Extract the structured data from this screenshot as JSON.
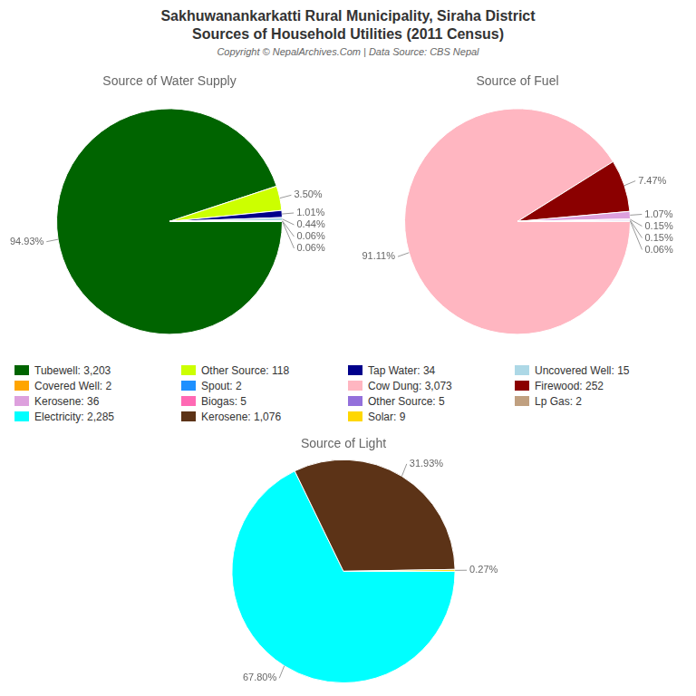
{
  "title": "Sakhuwanankarkatti Rural Municipality, Siraha District",
  "subtitle": "Sources of Household Utilities (2011 Census)",
  "annotations": [
    "Copyright © NepalArchives.Com | Data Source: CBS Nepal"
  ],
  "chart_data": [
    {
      "type": "pie",
      "title": "Source of Water Supply",
      "categories": [
        "Tubewell: 3,203",
        "Other Source: 118",
        "Tap Water: 34",
        "Uncovered Well: 15",
        "Covered Well: 2",
        "Spout: 2"
      ],
      "values": [
        94.93,
        3.5,
        1.01,
        0.44,
        0.06,
        0.06
      ],
      "value_labels": [
        "94.93%",
        "3.50%",
        "1.01%",
        "0.44%",
        "0.06%",
        "0.06%"
      ],
      "colors": [
        "#006400",
        "#ccff00",
        "#00008b",
        "#add8e6",
        "#ffa500",
        "#1e90ff"
      ],
      "data_labels": true
    },
    {
      "type": "pie",
      "title": "Source of Fuel",
      "categories": [
        "Cow Dung: 3,073",
        "Firewood: 252",
        "Kerosene: 36",
        "Biogas: 5",
        "Other Source: 5",
        "Lp Gas: 2"
      ],
      "values": [
        91.11,
        7.47,
        1.07,
        0.15,
        0.15,
        0.06
      ],
      "value_labels": [
        "91.11%",
        "7.47%",
        "1.07%",
        "0.15%",
        "0.15%",
        "0.06%"
      ],
      "colors": [
        "#ffb6c1",
        "#8b0000",
        "#dda0dd",
        "#ff69b4",
        "#9370db",
        "#c0a080"
      ],
      "data_labels": true
    },
    {
      "type": "pie",
      "title": "Source of Light",
      "categories": [
        "Electricity: 2,285",
        "Kerosene: 1,076",
        "Solar: 9"
      ],
      "values": [
        67.8,
        31.93,
        0.27
      ],
      "value_labels": [
        "67.80%",
        "31.93%",
        "0.27%"
      ],
      "colors": [
        "#00ffff",
        "#5c3317",
        "#ffd700"
      ],
      "data_labels": true
    }
  ]
}
